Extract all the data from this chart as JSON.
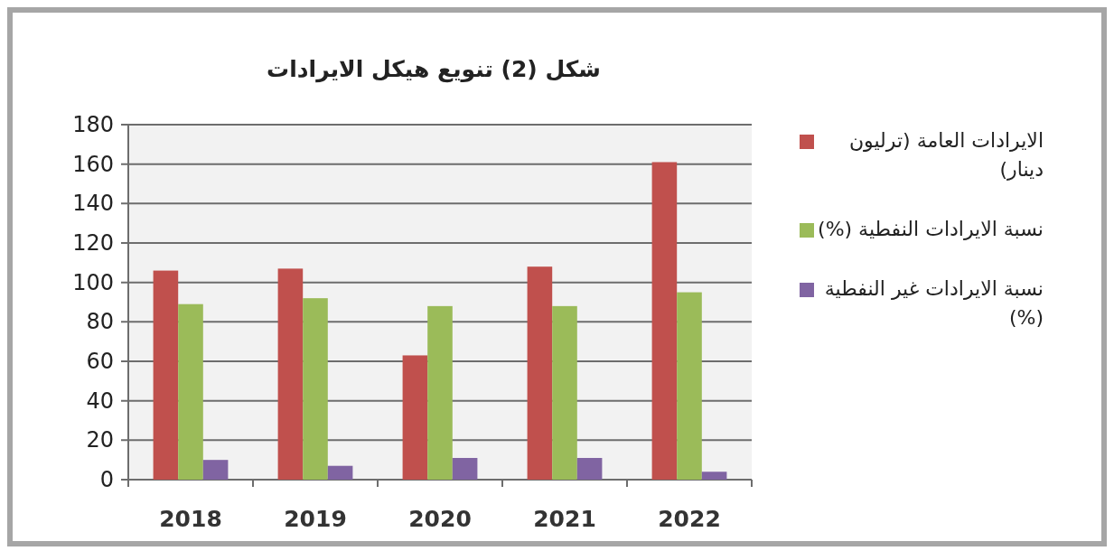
{
  "chart_data": {
    "type": "bar",
    "title": "شكل (2) تنويع هيكل الايرادات",
    "categories": [
      "2018",
      "2019",
      "2020",
      "2021",
      "2022"
    ],
    "series": [
      {
        "name": "الايرادات العامة (ترليون دينار)",
        "color": "#c0504d",
        "values": [
          106,
          107,
          63,
          108,
          161
        ]
      },
      {
        "name": "نسبة الايرادات النفطية (%)",
        "color": "#9bbb59",
        "values": [
          89,
          92,
          88,
          88,
          95
        ]
      },
      {
        "name": "نسبة الايرادات غير النفطية (%)",
        "color": "#8064a2",
        "values": [
          10,
          7,
          11,
          11,
          4
        ]
      }
    ],
    "ylim": [
      0,
      180
    ],
    "yticks": [
      0,
      20,
      40,
      60,
      80,
      100,
      120,
      140,
      160,
      180
    ],
    "grid": "y",
    "legend": "right"
  }
}
